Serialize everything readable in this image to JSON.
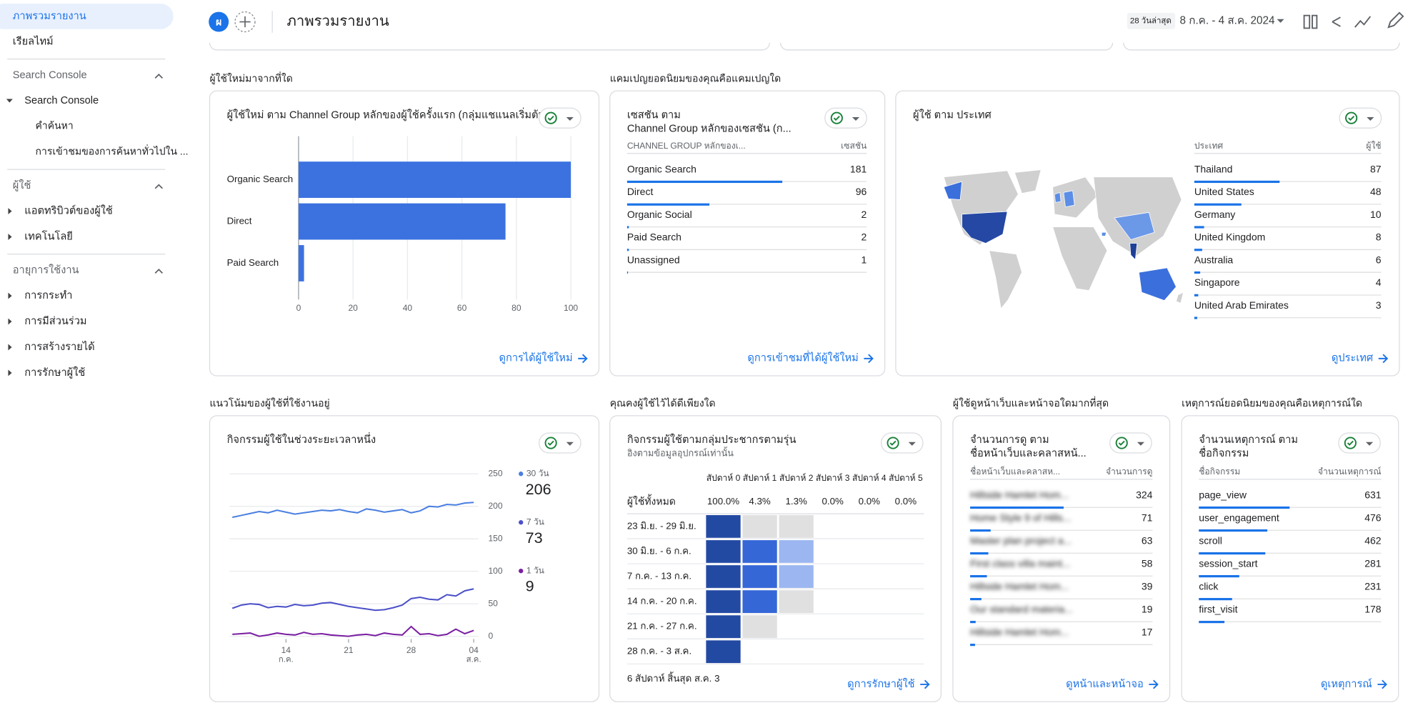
{
  "header": {
    "avatar": "ผ",
    "title": "ภาพรวมรายงาน",
    "date_range_label": "28 วันล่าสุด",
    "date_range": "8 ก.ค. - 4 ส.ค. 2024"
  },
  "sidebar": {
    "top": [
      "ภาพรวมรายงาน",
      "เรียลไทม์"
    ],
    "sections": [
      {
        "title": "Search Console",
        "items": [
          {
            "label": "Search Console",
            "children": [
              "คำค้นหา",
              "การเข้าชมของการค้นหาทั่วไปใน ..."
            ]
          }
        ]
      },
      {
        "title": "ผู้ใช้",
        "items": [
          {
            "label": "แอตทริบิวต์ของผู้ใช้"
          },
          {
            "label": "เทคโนโลยี"
          }
        ]
      },
      {
        "title": "อายุการใช้งาน",
        "items": [
          {
            "label": "การกระทำ"
          },
          {
            "label": "การมีส่วนร่วม"
          },
          {
            "label": "การสร้างรายได้"
          },
          {
            "label": "การรักษาผู้ใช้"
          }
        ]
      }
    ]
  },
  "cards": [
    {
      "heading": "ผู้ใช้ใหม่มาจากที่ใด",
      "title": [
        "ผู้ใช้ใหม่ ตาม Channel Group หลักของผู้ใช้ครั้งแรก (กลุ่มแชแนลเริ่มต้น)"
      ],
      "chart": {
        "type": "bar",
        "categories": [
          "Organic Search",
          "Direct",
          "Paid Search"
        ],
        "values": [
          100,
          76,
          2
        ],
        "color": "#3b72e0",
        "xlim": [
          0,
          100
        ],
        "xticks": [
          0,
          20,
          40,
          60,
          80,
          100
        ],
        "grid": true
      },
      "link": "ดูการได้ผู้ใช้ใหม่"
    },
    {
      "heading": "แคมเปญยอดนิยมของคุณคือแคมเปญใด",
      "title": [
        "เซสชัน ตาม",
        "Channel Group หลักของเซสชัน (ก..."
      ],
      "table": {
        "columns": [
          "CHANNEL GROUP หลักของเ...",
          "เซสชัน"
        ],
        "rows": [
          [
            "Organic Search",
            181
          ],
          [
            "Direct",
            96
          ],
          [
            "Organic Social",
            2
          ],
          [
            "Paid Search",
            2
          ],
          [
            "Unassigned",
            1
          ]
        ]
      },
      "link": "ดูการเข้าชมที่ได้ผู้ใช้ใหม่"
    },
    {
      "title": [
        "ผู้ใช้ ตาม ประเทศ"
      ],
      "table": {
        "columns": [
          "ประเทศ",
          "ผู้ใช้"
        ],
        "rows": [
          [
            "Thailand",
            87
          ],
          [
            "United States",
            48
          ],
          [
            "Germany",
            10
          ],
          [
            "United Kingdom",
            8
          ],
          [
            "Australia",
            6
          ],
          [
            "Singapore",
            4
          ],
          [
            "United Arab Emirates",
            3
          ]
        ]
      },
      "link": "ดูประเทศ"
    },
    {
      "heading": "แนวโน้มของผู้ใช้ที่ใช้งานอยู่",
      "title": [
        "กิจกรรมผู้ใช้ในช่วงระยะเวลาหนึ่ง"
      ],
      "chart": {
        "type": "line",
        "categories": [
          null,
          null,
          null,
          null,
          null,
          null,
          "14",
          null,
          null,
          null,
          null,
          null,
          null,
          "21",
          null,
          null,
          null,
          null,
          null,
          null,
          "28",
          null,
          null,
          null,
          null,
          null,
          null,
          "04"
        ],
        "x_sublabels": [
          null,
          null,
          null,
          null,
          null,
          null,
          "ก.ค.",
          null,
          null,
          null,
          null,
          null,
          null,
          null,
          null,
          null,
          null,
          null,
          null,
          null,
          null,
          null,
          null,
          null,
          null,
          null,
          null,
          "ส.ค."
        ],
        "ylim": [
          0,
          250
        ],
        "yticks": [
          0,
          50,
          100,
          150,
          200,
          250
        ],
        "grid": true,
        "series": [
          {
            "name": "30 วัน",
            "color": "#4a7fe0",
            "values": [
              183,
              186,
              189,
              192,
              190,
              194,
              191,
              188,
              190,
              192,
              194,
              193,
              195,
              192,
              190,
              196,
              194,
              191,
              193,
              195,
              190,
              193,
              200,
              199,
              203,
              202,
              205,
              206
            ]
          },
          {
            "name": "7 วัน",
            "color": "#4b50c8",
            "values": [
              43,
              48,
              50,
              49,
              44,
              46,
              45,
              49,
              47,
              48,
              51,
              52,
              49,
              46,
              44,
              42,
              40,
              41,
              44,
              48,
              58,
              60,
              57,
              56,
              64,
              62,
              70,
              73
            ]
          },
          {
            "name": "1 วัน",
            "color": "#7b1fa2",
            "values": [
              3,
              4,
              5,
              0,
              2,
              5,
              3,
              2,
              6,
              3,
              4,
              2,
              1,
              0,
              2,
              3,
              1,
              5,
              3,
              2,
              15,
              3,
              4,
              1,
              3,
              11,
              4,
              9
            ]
          }
        ]
      }
    },
    {
      "heading": "คุณคงผู้ใช้ไว้ได้ดีเพียงใด",
      "title": [
        "กิจกรรมผู้ใช้ตามกลุ่มประชากรตามรุ่น"
      ],
      "subtitle": "อิงตามข้อมูลอุปกรณ์เท่านั้น",
      "cohort": {
        "columns": [
          "สัปดาห์ 0",
          "สัปดาห์ 1",
          "สัปดาห์ 2",
          "สัปดาห์ 3",
          "สัปดาห์ 4",
          "สัปดาห์ 5"
        ],
        "total_label": "ผู้ใช้ทั้งหมด",
        "totals": [
          "100.0%",
          "4.3%",
          "1.3%",
          "0.0%",
          "0.0%",
          "0.0%"
        ],
        "rows": [
          {
            "label": "23 มิ.ย. - 29 มิ.ย.",
            "values": [
              100,
              0,
              0
            ]
          },
          {
            "label": "30 มิ.ย. - 6 ก.ค.",
            "values": [
              100,
              8,
              3
            ]
          },
          {
            "label": "7 ก.ค. - 13 ก.ค.",
            "values": [
              100,
              8,
              3
            ]
          },
          {
            "label": "14 ก.ค. - 20 ก.ค.",
            "values": [
              100,
              8,
              0
            ]
          },
          {
            "label": "21 ก.ค. - 27 ก.ค.",
            "values": [
              100,
              0
            ]
          },
          {
            "label": "28 ก.ค. - 3 ส.ค.",
            "values": [
              100
            ]
          }
        ]
      },
      "footer": "6 สัปดาห์ สิ้นสุด ส.ค. 3",
      "link": "ดูการรักษาผู้ใช้"
    },
    {
      "heading": "ผู้ใช้ดูหน้าเว็บและหน้าจอใดมากที่สุด",
      "title": [
        "จำนวนการดู ตาม",
        "ชื่อหน้าเว็บและคลาสหน้..."
      ],
      "table": {
        "columns": [
          "ชื่อหน้าเว็บและคลาสห...",
          "จำนวนการดู"
        ],
        "rows": [
          [
            "Hillside Hamlet Hom...",
            324
          ],
          [
            "Home Style 9 of Hills...",
            71
          ],
          [
            "Master plan project a...",
            63
          ],
          [
            "First class villa maint...",
            58
          ],
          [
            "Hillside Hamlet Hom...",
            39
          ],
          [
            "Our standard materia...",
            19
          ],
          [
            "Hillside Hamlet Hom...",
            17
          ]
        ]
      },
      "link": "ดูหน้าและหน้าจอ"
    },
    {
      "heading": "เหตุการณ์ยอดนิยมของคุณคือเหตุการณ์ใด",
      "title": [
        "จำนวนเหตุการณ์ ตาม",
        "ชื่อกิจกรรม"
      ],
      "table": {
        "columns": [
          "ชื่อกิจกรรม",
          "จำนวนเหตุการณ์"
        ],
        "rows": [
          [
            "page_view",
            631
          ],
          [
            "user_engagement",
            476
          ],
          [
            "scroll",
            462
          ],
          [
            "session_start",
            281
          ],
          [
            "click",
            231
          ],
          [
            "first_visit",
            178
          ]
        ]
      },
      "link": "ดูเหตุการณ์"
    }
  ]
}
